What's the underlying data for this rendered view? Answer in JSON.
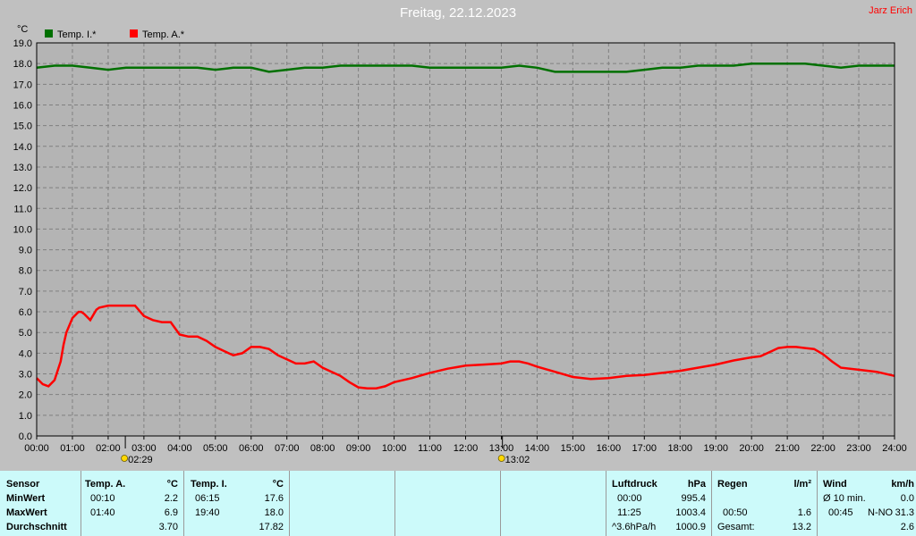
{
  "title": "Freitag, 22.12.2023",
  "author": "Jarz Erich",
  "colors": {
    "background": "#c0c0c0",
    "plot_background": "#b4b4b4",
    "grid": "#808080",
    "temp_indoor": "#007000",
    "temp_outdoor": "#ff0000",
    "table_background": "#ccfafa"
  },
  "chart_data": {
    "type": "line",
    "title": "Freitag, 22.12.2023",
    "ylabel": "°C",
    "ylim": [
      0,
      19
    ],
    "xlim": [
      0,
      24
    ],
    "grid": true,
    "legend_position": "top-left",
    "x_ticks": [
      "00:00",
      "01:00",
      "02:00",
      "03:00",
      "04:00",
      "05:00",
      "06:00",
      "07:00",
      "08:00",
      "09:00",
      "10:00",
      "11:00",
      "12:00",
      "13:00",
      "14:00",
      "15:00",
      "16:00",
      "17:00",
      "18:00",
      "19:00",
      "20:00",
      "21:00",
      "22:00",
      "23:00",
      "24:00"
    ],
    "y_ticks": [
      "0.0",
      "1.0",
      "2.0",
      "3.0",
      "4.0",
      "5.0",
      "6.0",
      "7.0",
      "8.0",
      "9.0",
      "10.0",
      "11.0",
      "12.0",
      "13.0",
      "14.0",
      "15.0",
      "16.0",
      "17.0",
      "18.0",
      "19.0"
    ],
    "series": [
      {
        "name": "Temp. I.*",
        "color": "#007000",
        "x": [
          0,
          0.5,
          1,
          1.5,
          2,
          2.5,
          3,
          3.5,
          4,
          4.5,
          5,
          5.5,
          6,
          6.5,
          7,
          7.5,
          8,
          8.5,
          9,
          9.5,
          10,
          10.5,
          11,
          11.5,
          12,
          12.5,
          13,
          13.5,
          14,
          14.5,
          15,
          15.5,
          16,
          16.5,
          17,
          17.5,
          18,
          18.5,
          19,
          19.5,
          20,
          20.5,
          21,
          21.5,
          22,
          22.5,
          23,
          23.5,
          24
        ],
        "y": [
          17.8,
          17.9,
          17.9,
          17.8,
          17.7,
          17.8,
          17.8,
          17.8,
          17.8,
          17.8,
          17.7,
          17.8,
          17.8,
          17.6,
          17.7,
          17.8,
          17.8,
          17.9,
          17.9,
          17.9,
          17.9,
          17.9,
          17.8,
          17.8,
          17.8,
          17.8,
          17.8,
          17.9,
          17.8,
          17.6,
          17.6,
          17.6,
          17.6,
          17.6,
          17.7,
          17.8,
          17.8,
          17.9,
          17.9,
          17.9,
          18.0,
          18.0,
          18.0,
          18.0,
          17.9,
          17.8,
          17.9,
          17.9,
          17.9
        ]
      },
      {
        "name": "Temp. A.*",
        "color": "#ff0000",
        "x": [
          0,
          0.17,
          0.33,
          0.5,
          0.67,
          0.75,
          0.83,
          1,
          1.17,
          1.25,
          1.33,
          1.5,
          1.67,
          1.75,
          2,
          2.25,
          2.5,
          2.75,
          3,
          3.25,
          3.5,
          3.75,
          4,
          4.25,
          4.5,
          4.75,
          5,
          5.25,
          5.5,
          5.75,
          6,
          6.25,
          6.5,
          6.75,
          7,
          7.25,
          7.5,
          7.75,
          8,
          8.25,
          8.5,
          8.75,
          9,
          9.25,
          9.5,
          9.75,
          10,
          10.5,
          11,
          11.5,
          12,
          12.5,
          13,
          13.25,
          13.5,
          13.75,
          14,
          14.5,
          15,
          15.5,
          16,
          16.5,
          17,
          17.5,
          18,
          18.5,
          19,
          19.5,
          20,
          20.25,
          20.5,
          20.75,
          21,
          21.25,
          21.5,
          21.75,
          22,
          22.25,
          22.5,
          23,
          23.5,
          24
        ],
        "y": [
          2.8,
          2.5,
          2.4,
          2.7,
          3.6,
          4.4,
          5.0,
          5.7,
          6.0,
          6.0,
          5.9,
          5.6,
          6.1,
          6.2,
          6.3,
          6.3,
          6.3,
          6.3,
          5.8,
          5.6,
          5.5,
          5.5,
          4.9,
          4.8,
          4.8,
          4.6,
          4.3,
          4.1,
          3.9,
          4.0,
          4.3,
          4.3,
          4.2,
          3.9,
          3.7,
          3.5,
          3.5,
          3.6,
          3.3,
          3.1,
          2.9,
          2.6,
          2.35,
          2.3,
          2.3,
          2.4,
          2.6,
          2.8,
          3.05,
          3.25,
          3.4,
          3.45,
          3.5,
          3.6,
          3.6,
          3.5,
          3.35,
          3.1,
          2.85,
          2.75,
          2.8,
          2.9,
          2.95,
          3.05,
          3.15,
          3.3,
          3.45,
          3.65,
          3.8,
          3.85,
          4.05,
          4.25,
          4.3,
          4.3,
          4.25,
          4.2,
          3.95,
          3.6,
          3.3,
          3.2,
          3.1,
          2.9
        ]
      }
    ],
    "markers": [
      {
        "time": "02:29",
        "x": 2.48,
        "icon": "sunrise-marker-icon"
      },
      {
        "time": "13:02",
        "x": 13.03,
        "icon": "sun-marker-icon"
      }
    ]
  },
  "stats_table": {
    "row_labels": [
      "Sensor",
      "MinWert",
      "MaxWert",
      "Durchschnitt"
    ],
    "temp_a": {
      "header": "Temp. A.",
      "unit": "°C",
      "min_time": "00:10",
      "min_val": "2.2",
      "max_time": "01:40",
      "max_val": "6.9",
      "avg": "3.70"
    },
    "temp_i": {
      "header": "Temp. I.",
      "unit": "°C",
      "min_time": "06:15",
      "min_val": "17.6",
      "max_time": "19:40",
      "max_val": "18.0",
      "avg": "17.82"
    },
    "pressure": {
      "header": "Luftdruck",
      "unit": "hPa",
      "r1_time": "00:00",
      "r1_val": "995.4",
      "r2_time": "11:25",
      "r2_val": "1003.4",
      "r3_label": "^3.6hPa/h",
      "r3_val": "1000.9"
    },
    "rain": {
      "header": "Regen",
      "unit": "l/m²",
      "r2_time": "00:50",
      "r2_val": "1.6",
      "r3_label": "Gesamt:",
      "r3_val": "13.2"
    },
    "wind": {
      "header": "Wind",
      "unit": "km/h",
      "r1_label": "Ø 10 min.",
      "r1_val": "0.0",
      "r2_time": "00:45",
      "r2_dir": "N-NO",
      "r2_val": "31.3",
      "r3_val": "2.6"
    }
  }
}
